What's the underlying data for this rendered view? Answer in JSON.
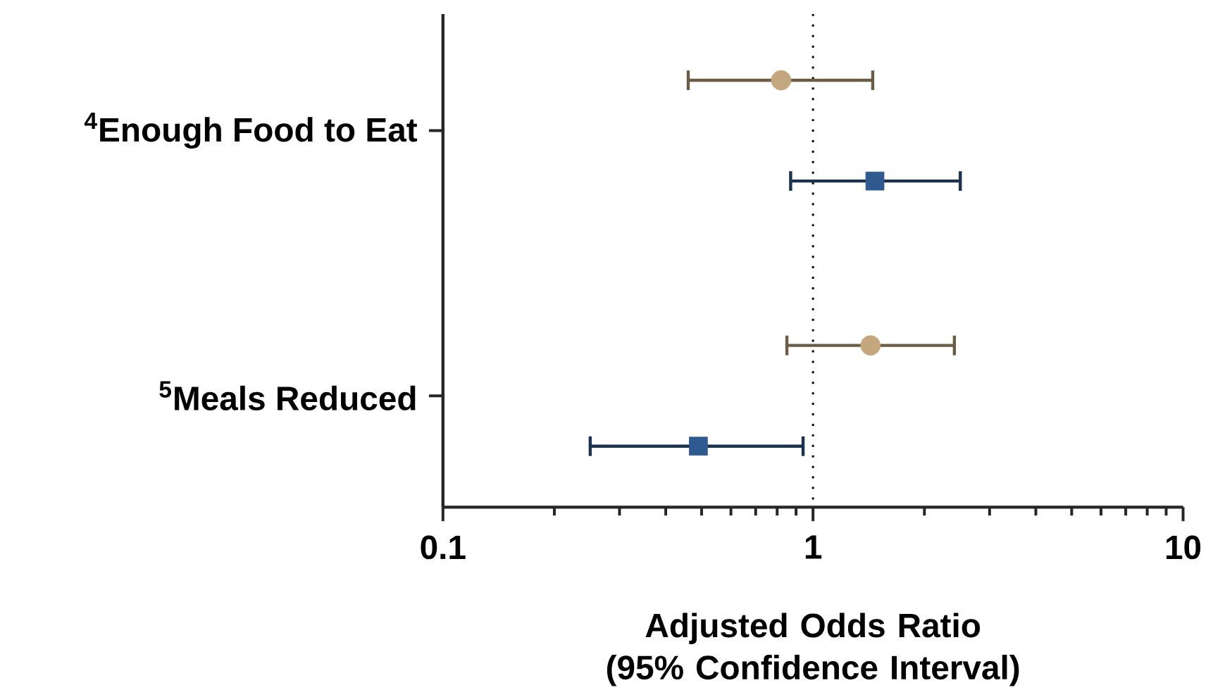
{
  "chart_data": {
    "type": "scatter",
    "orientation": "horizontal",
    "categories": [
      "$^{4}$Enough Food to Eat",
      "$^{5}$Meals Reduced"
    ],
    "series": [
      {
        "color": "#c4a77d",
        "marker": "circle",
        "values": [
          0.82,
          1.43
        ],
        "errors": [
          [
            0.46,
            1.45
          ],
          [
            0.85,
            2.41
          ]
        ]
      },
      {
        "color": "#2f5a8f",
        "marker": "square",
        "values": [
          1.47,
          0.49
        ],
        "errors": [
          [
            0.87,
            2.5
          ],
          [
            0.25,
            0.94
          ]
        ]
      }
    ],
    "xlabel": "Adjusted Odds Ratio (95% Confidence Interval)",
    "log": "x",
    "xlim": [
      0.1,
      10
    ],
    "xticks": [
      0.1,
      1,
      10
    ],
    "ref_lines": [
      {
        "axis": "x",
        "value": 1,
        "line_style": "dotted"
      }
    ],
    "grid": false
  }
}
